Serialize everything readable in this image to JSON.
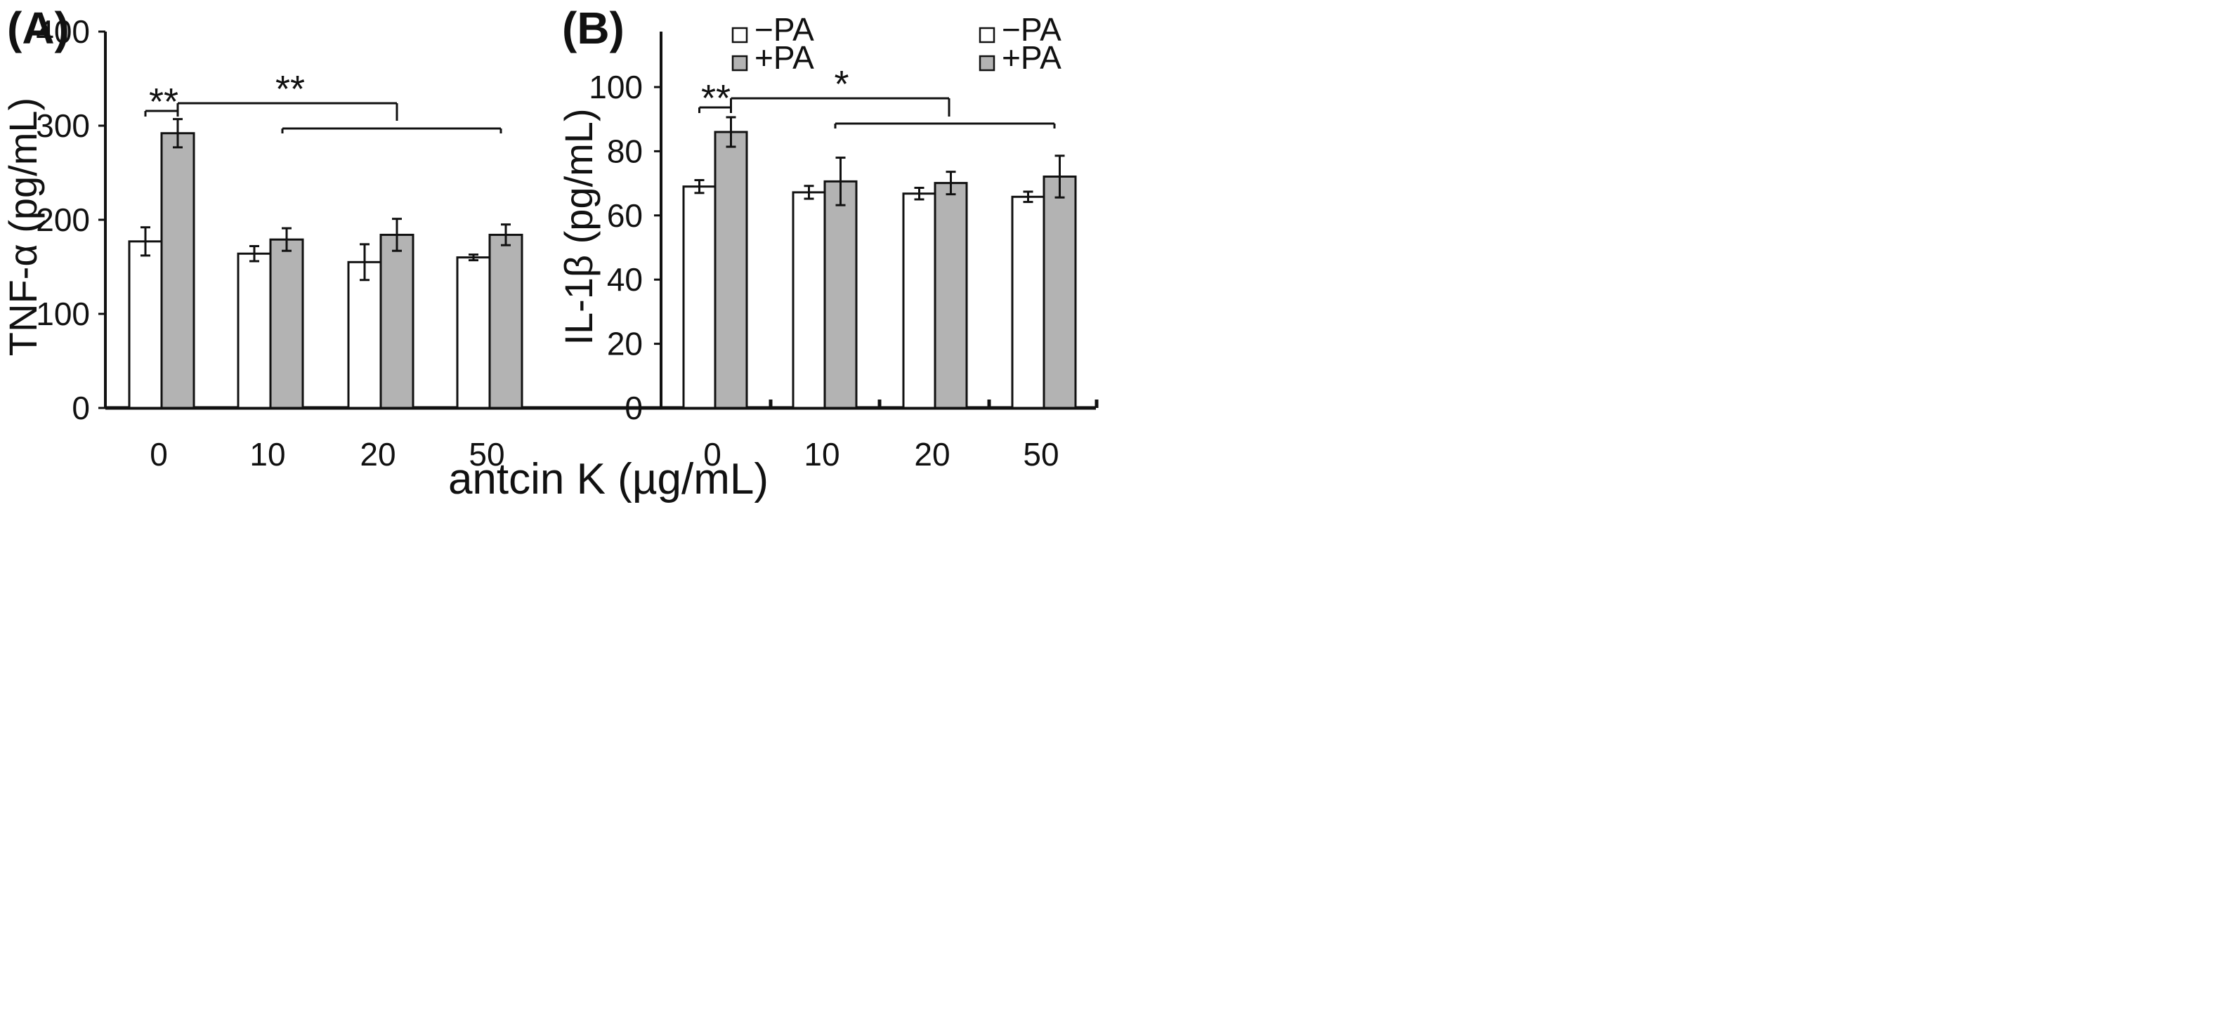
{
  "figure": {
    "x_axis_title": "antcin K (µg/mL)"
  },
  "colors": {
    "minus_pa_fill": "#ffffff",
    "plus_pa_fill": "#b3b3b3",
    "axis": "#111111"
  },
  "chart_data": [
    {
      "panel": "(A)",
      "type": "bar",
      "title": "",
      "xlabel": "antcin K (µg/mL)",
      "ylabel": "TNF-α (pg/mL)",
      "ylim": [
        0,
        400
      ],
      "yticks": [
        0,
        100,
        200,
        300,
        400
      ],
      "categories": [
        "0",
        "10",
        "20",
        "50"
      ],
      "series": [
        {
          "name": "−PA",
          "values": [
            177,
            164,
            155,
            160
          ],
          "errors": [
            15,
            8,
            19,
            3
          ]
        },
        {
          "name": "+PA",
          "values": [
            292,
            179,
            184,
            184
          ],
          "errors": [
            15,
            12,
            17,
            11
          ]
        }
      ],
      "legend": {
        "placement": "top-right",
        "entries": [
          "−PA",
          "+PA"
        ]
      },
      "annotations": [
        {
          "text": "**",
          "between": "0 −PA vs 0 +PA"
        },
        {
          "text": "**",
          "between": "0 +PA vs 10, 20, 50 +PA"
        }
      ]
    },
    {
      "panel": "(B)",
      "type": "bar",
      "title": "",
      "xlabel": "antcin K (µg/mL)",
      "ylabel": "IL-1β (pg/mL)",
      "ylim": [
        0,
        120
      ],
      "yticks": [
        0,
        20,
        40,
        60,
        80,
        100
      ],
      "categories": [
        "0",
        "10",
        "20",
        "50"
      ],
      "series": [
        {
          "name": "−PA",
          "values": [
            69,
            67.2,
            66.8,
            65.8
          ],
          "errors": [
            2,
            2,
            1.8,
            1.6
          ]
        },
        {
          "name": "+PA",
          "values": [
            86,
            70.6,
            70.1,
            72.1
          ],
          "errors": [
            4.6,
            7.4,
            3.5,
            6.5
          ]
        }
      ],
      "legend": {
        "placement": "top-right",
        "entries": [
          "−PA",
          "+PA"
        ]
      },
      "annotations": [
        {
          "text": "**",
          "between": "0 −PA vs 0 +PA"
        },
        {
          "text": "*",
          "between": "0 +PA vs 10, 20, 50 +PA"
        }
      ]
    }
  ]
}
